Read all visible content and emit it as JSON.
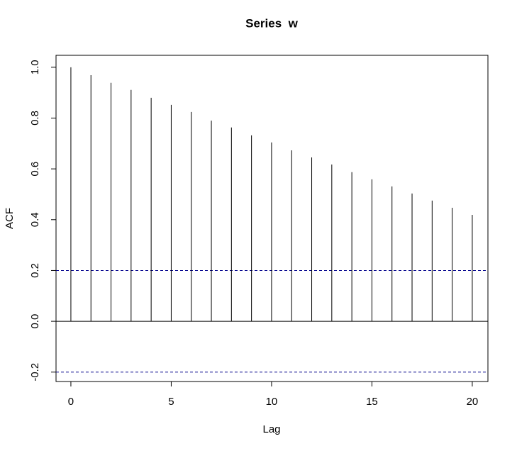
{
  "chart_data": {
    "type": "acf",
    "title": "Series  w",
    "x_label": "Lag",
    "y_label": "ACF",
    "x": [
      0,
      1,
      2,
      3,
      4,
      5,
      6,
      7,
      8,
      9,
      10,
      11,
      12,
      13,
      14,
      15,
      16,
      17,
      18,
      19,
      20
    ],
    "values": [
      1.0,
      0.969,
      0.939,
      0.911,
      0.88,
      0.852,
      0.824,
      0.79,
      0.763,
      0.732,
      0.704,
      0.673,
      0.645,
      0.617,
      0.587,
      0.559,
      0.531,
      0.503,
      0.475,
      0.447,
      0.419
    ],
    "color": "#000000",
    "zero_line": 0,
    "ci_lines": [
      0.2,
      -0.2
    ],
    "ci_color": "#00008b",
    "xlim": [
      -0.74,
      20.78
    ],
    "ylim": [
      -0.237,
      1.047
    ],
    "xticks": [
      0,
      5,
      10,
      15,
      20
    ],
    "yticks": [
      -0.2,
      {
        "value": 0,
        "label": "0.0"
      },
      0.2,
      0.4,
      0.6,
      0.8,
      {
        "value": 1,
        "label": "1.0"
      }
    ]
  }
}
